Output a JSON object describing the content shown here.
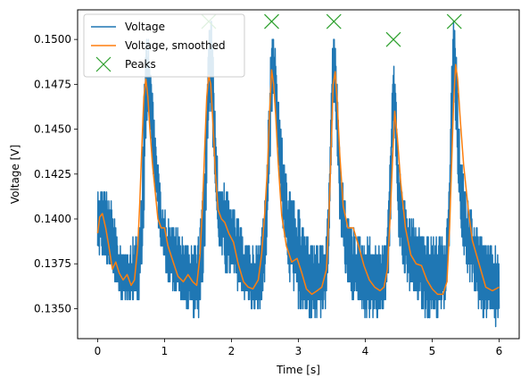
{
  "chart_data": {
    "type": "line",
    "title": "",
    "xlabel": "Time [s]",
    "ylabel": "Voltage [V]",
    "xlim": [
      -0.3,
      6.3
    ],
    "ylim": [
      0.13333,
      0.15165
    ],
    "x_ticks": [
      {
        "value": 0,
        "label": "0"
      },
      {
        "value": 1,
        "label": "1"
      },
      {
        "value": 2,
        "label": "2"
      },
      {
        "value": 3,
        "label": "3"
      },
      {
        "value": 4,
        "label": "4"
      },
      {
        "value": 5,
        "label": "5"
      },
      {
        "value": 6,
        "label": "6"
      }
    ],
    "y_ticks": [
      {
        "value": 0.135,
        "label": "0.1350"
      },
      {
        "value": 0.1375,
        "label": "0.1375"
      },
      {
        "value": 0.14,
        "label": "0.1400"
      },
      {
        "value": 0.1425,
        "label": "0.1425"
      },
      {
        "value": 0.145,
        "label": "0.1450"
      },
      {
        "value": 0.1475,
        "label": "0.1475"
      },
      {
        "value": 0.15,
        "label": "0.1500"
      }
    ],
    "grid": false,
    "legend_position": "top-left",
    "series": [
      {
        "name": "Voltage",
        "style": "noisy-band",
        "color": "#1f77b4",
        "x": [
          0.0,
          0.05,
          0.1,
          0.2,
          0.3,
          0.35,
          0.45,
          0.55,
          0.6,
          0.65,
          0.68,
          0.7,
          0.72,
          0.75,
          0.78,
          0.82,
          0.88,
          0.95,
          1.05,
          1.2,
          1.4,
          1.5,
          1.55,
          1.6,
          1.63,
          1.66,
          1.7,
          1.73,
          1.76,
          1.8,
          1.9,
          2.0,
          2.1,
          2.2,
          2.3,
          2.4,
          2.45,
          2.5,
          2.55,
          2.58,
          2.6,
          2.63,
          2.66,
          2.7,
          2.78,
          2.85,
          3.0,
          3.15,
          3.3,
          3.4,
          3.45,
          3.48,
          3.51,
          3.53,
          3.55,
          3.58,
          3.62,
          3.7,
          3.8,
          3.95,
          4.1,
          4.25,
          4.32,
          4.37,
          4.4,
          4.43,
          4.46,
          4.5,
          4.56,
          4.65,
          4.8,
          4.95,
          5.1,
          5.2,
          5.25,
          5.28,
          5.31,
          5.34,
          5.37,
          5.42,
          5.5,
          5.6,
          5.75,
          5.9,
          6.0
        ],
        "low": [
          0.1375,
          0.138,
          0.1375,
          0.1365,
          0.136,
          0.1355,
          0.1355,
          0.135,
          0.135,
          0.1365,
          0.1385,
          0.141,
          0.144,
          0.146,
          0.145,
          0.143,
          0.1405,
          0.138,
          0.1365,
          0.1355,
          0.1345,
          0.1345,
          0.1355,
          0.138,
          0.142,
          0.146,
          0.146,
          0.1435,
          0.141,
          0.1385,
          0.137,
          0.1365,
          0.136,
          0.1355,
          0.135,
          0.1345,
          0.135,
          0.1365,
          0.1395,
          0.143,
          0.1455,
          0.1465,
          0.1455,
          0.143,
          0.139,
          0.1365,
          0.135,
          0.1345,
          0.1345,
          0.135,
          0.1375,
          0.141,
          0.1455,
          0.1465,
          0.146,
          0.1435,
          0.1395,
          0.137,
          0.1355,
          0.1345,
          0.1345,
          0.1345,
          0.1355,
          0.1385,
          0.1435,
          0.145,
          0.143,
          0.139,
          0.137,
          0.136,
          0.135,
          0.1345,
          0.1345,
          0.135,
          0.1375,
          0.1415,
          0.146,
          0.1465,
          0.1435,
          0.1395,
          0.137,
          0.136,
          0.1345,
          0.134,
          0.134
        ],
        "high": [
          0.142,
          0.142,
          0.142,
          0.141,
          0.139,
          0.1385,
          0.1385,
          0.139,
          0.1395,
          0.1415,
          0.1445,
          0.148,
          0.1505,
          0.1505,
          0.1495,
          0.147,
          0.144,
          0.1415,
          0.14,
          0.1395,
          0.1385,
          0.139,
          0.1405,
          0.143,
          0.147,
          0.151,
          0.151,
          0.149,
          0.1455,
          0.1425,
          0.142,
          0.141,
          0.14,
          0.139,
          0.1385,
          0.1385,
          0.1395,
          0.1415,
          0.1455,
          0.149,
          0.151,
          0.1505,
          0.1495,
          0.147,
          0.1435,
          0.142,
          0.1405,
          0.139,
          0.1385,
          0.1385,
          0.141,
          0.1455,
          0.1495,
          0.151,
          0.1505,
          0.1475,
          0.1435,
          0.141,
          0.1395,
          0.139,
          0.139,
          0.1385,
          0.1395,
          0.143,
          0.1475,
          0.1495,
          0.147,
          0.143,
          0.1415,
          0.1405,
          0.1395,
          0.139,
          0.139,
          0.139,
          0.1415,
          0.1465,
          0.151,
          0.151,
          0.148,
          0.144,
          0.1415,
          0.1405,
          0.139,
          0.1385,
          0.1385
        ]
      },
      {
        "name": "Voltage, smoothed",
        "style": "line",
        "color": "#ff7f0e",
        "x": [
          0.0,
          0.03,
          0.07,
          0.12,
          0.17,
          0.22,
          0.27,
          0.32,
          0.38,
          0.44,
          0.5,
          0.55,
          0.6,
          0.63,
          0.66,
          0.69,
          0.72,
          0.75,
          0.78,
          0.82,
          0.86,
          0.9,
          0.95,
          1.0,
          1.05,
          1.12,
          1.2,
          1.28,
          1.35,
          1.42,
          1.48,
          1.53,
          1.57,
          1.6,
          1.63,
          1.66,
          1.69,
          1.72,
          1.76,
          1.8,
          1.85,
          1.9,
          1.96,
          2.03,
          2.1,
          2.18,
          2.25,
          2.32,
          2.4,
          2.45,
          2.5,
          2.54,
          2.57,
          2.6,
          2.63,
          2.66,
          2.7,
          2.75,
          2.82,
          2.9,
          2.98,
          3.05,
          3.12,
          3.2,
          3.28,
          3.35,
          3.42,
          3.46,
          3.49,
          3.52,
          3.55,
          3.58,
          3.62,
          3.67,
          3.74,
          3.82,
          3.9,
          3.98,
          4.06,
          4.14,
          4.22,
          4.28,
          4.33,
          4.37,
          4.41,
          4.44,
          4.48,
          4.53,
          4.6,
          4.68,
          4.76,
          4.84,
          4.92,
          5.0,
          5.08,
          5.16,
          5.22,
          5.26,
          5.29,
          5.32,
          5.35,
          5.38,
          5.42,
          5.47,
          5.54,
          5.6,
          5.7,
          5.8,
          5.9,
          6.0
        ],
        "y": [
          0.1392,
          0.1401,
          0.1403,
          0.1395,
          0.1384,
          0.1372,
          0.1376,
          0.137,
          0.1366,
          0.1369,
          0.1363,
          0.1366,
          0.1385,
          0.141,
          0.144,
          0.1468,
          0.1478,
          0.1468,
          0.145,
          0.143,
          0.1415,
          0.14,
          0.1395,
          0.1395,
          0.1385,
          0.1377,
          0.1368,
          0.1365,
          0.1369,
          0.1365,
          0.1363,
          0.138,
          0.141,
          0.144,
          0.1468,
          0.148,
          0.1475,
          0.1455,
          0.1425,
          0.1405,
          0.14,
          0.1398,
          0.1392,
          0.1387,
          0.1375,
          0.1365,
          0.1362,
          0.1361,
          0.1366,
          0.138,
          0.1405,
          0.143,
          0.146,
          0.1483,
          0.1475,
          0.1458,
          0.143,
          0.1402,
          0.1385,
          0.1376,
          0.1378,
          0.137,
          0.1361,
          0.1358,
          0.136,
          0.1362,
          0.1372,
          0.1405,
          0.144,
          0.1475,
          0.1482,
          0.1465,
          0.1435,
          0.1407,
          0.1395,
          0.1395,
          0.1385,
          0.1374,
          0.1366,
          0.1362,
          0.136,
          0.1362,
          0.1372,
          0.14,
          0.1435,
          0.146,
          0.1445,
          0.142,
          0.1395,
          0.138,
          0.1375,
          0.1374,
          0.1366,
          0.1361,
          0.1358,
          0.1358,
          0.1365,
          0.1395,
          0.143,
          0.1465,
          0.1486,
          0.1478,
          0.1455,
          0.143,
          0.1405,
          0.1388,
          0.1375,
          0.1362,
          0.136,
          0.1362
        ]
      },
      {
        "name": "Peaks",
        "style": "markers",
        "marker": "x",
        "color": "#2ca02c",
        "x": [
          1.66,
          2.6,
          3.53,
          4.42,
          5.33
        ],
        "y": [
          0.151,
          0.151,
          0.151,
          0.15,
          0.151
        ]
      }
    ]
  }
}
